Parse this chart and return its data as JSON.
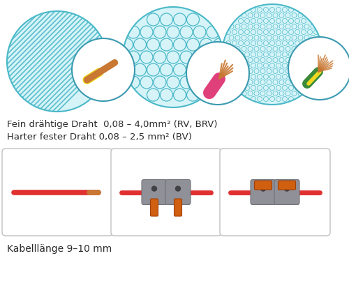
{
  "bg_color": "#ffffff",
  "text_color": "#2a2a2a",
  "line1": "Fein drähtige Draht  0,08 – 4,0mm² (RV, BRV)",
  "line2": "Harter fester Draht 0,08 – 2,5 mm² (BV)",
  "line3": "Kabelllänge 9–10 mm",
  "circle_fill": "#d6f4f8",
  "circle_stroke": "#4ab8c8",
  "stripe_color": "#4ab8c8",
  "bubble_fill": "#d6f4f8",
  "bubble_stroke": "#4ab8c8",
  "dot_fill": "#d6f4f8",
  "dot_stroke": "#4ab8c8",
  "small_circle_fill": "#ffffff",
  "small_circle_stroke": "#3a9ab0",
  "wire_copper": "#c87832",
  "wire_yellow": "#f0d820",
  "wire_pink": "#e0407a",
  "wire_red": "#e03030",
  "wire_green": "#3a8a3a",
  "connector_gray": "#909098",
  "connector_edge": "#707078",
  "lever_orange": "#d06010",
  "box_edge": "#c0c0c0",
  "figsize": [
    5.0,
    4.33
  ],
  "dpi": 100
}
